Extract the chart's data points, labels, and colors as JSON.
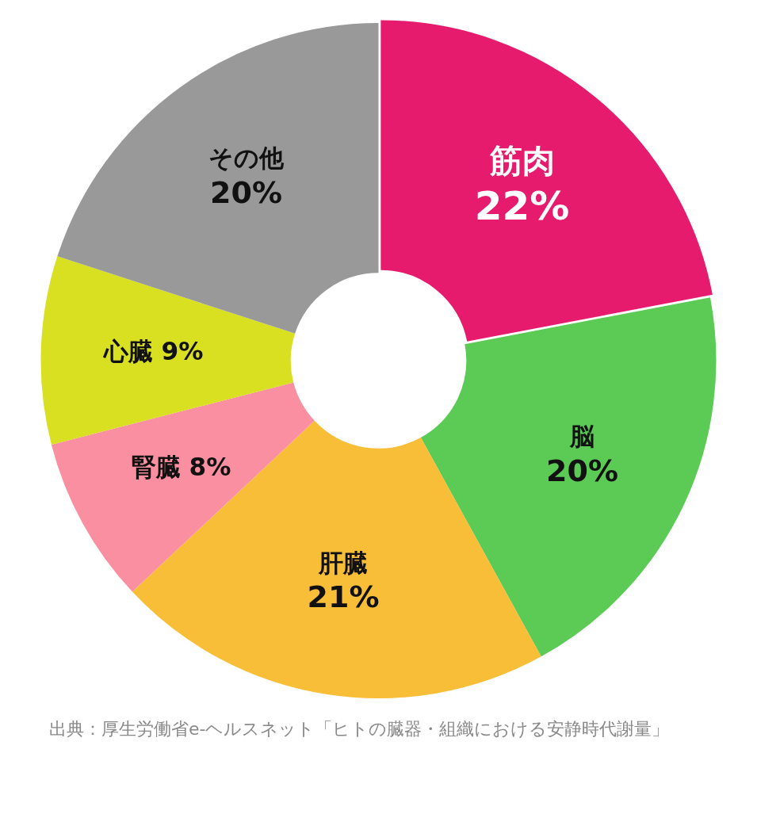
{
  "chart_data": {
    "type": "donut",
    "categories": [
      "筋肉",
      "脳",
      "肝臓",
      "腎臓",
      "心臓",
      "その他"
    ],
    "values": [
      22,
      20,
      21,
      8,
      9,
      20
    ],
    "colors": [
      "#e61b6e",
      "#5bcb56",
      "#f9be37",
      "#f98fa0",
      "#d8e021",
      "#999999"
    ],
    "value_labels": [
      "22%",
      "20%",
      "21%",
      "8%",
      "9%",
      "20%"
    ],
    "legend": false,
    "annotations": [
      "出典：厚生労働省e-ヘルスネット「ヒトの臓器・組織における安静時代謝量」"
    ]
  }
}
